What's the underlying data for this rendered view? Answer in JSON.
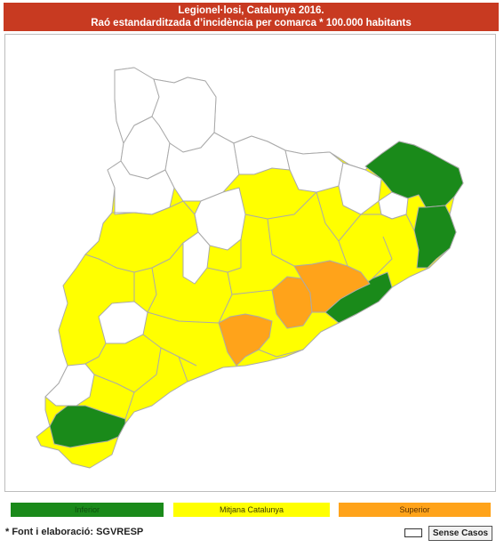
{
  "header": {
    "title": "Legionel·losi, Catalunya 2016.",
    "subtitle": "Raó estandarditzada d’incidència per comarca * 100.000 habitants"
  },
  "legend": [
    {
      "label": "Inferior",
      "color": "#1a8a1a"
    },
    {
      "label": "Mitjana Catalunya",
      "color": "#ffff00"
    },
    {
      "label": "Superior",
      "color": "#ffa31a"
    }
  ],
  "footer": {
    "source": "* Font i elaboració: SGVRESP",
    "no_cases_label": "Sense Casos"
  },
  "colors": {
    "inferior": "#1a8a1a",
    "mitjana": "#ffff00",
    "superior": "#ffa31a",
    "sense_casos": "#ffffff",
    "border": "#aaaaaa",
    "header_bg": "#c83a21"
  }
}
